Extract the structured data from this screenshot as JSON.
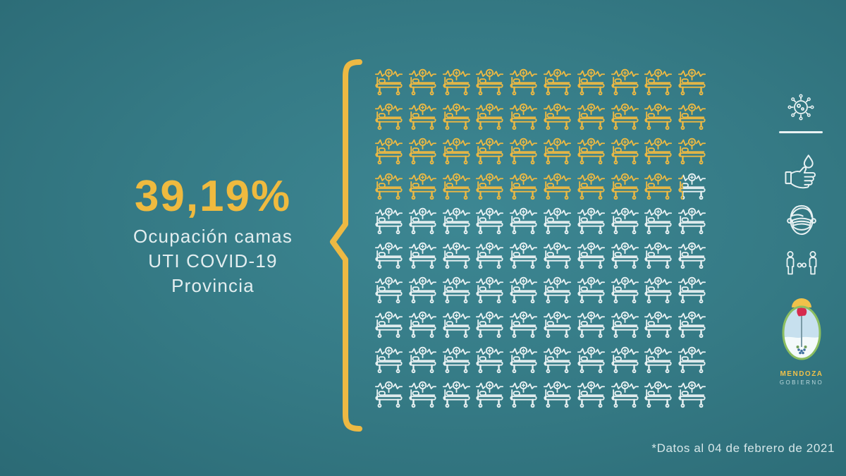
{
  "theme": {
    "background_center": "#3d8793",
    "background_edge": "#2b6a75",
    "accent_yellow": "#efba3f",
    "icon_white": "#e9f2f3",
    "text_light": "#e3eef0"
  },
  "headline": {
    "percentage": "39,19%",
    "subtitle_lines": [
      "Ocupación camas",
      "UTI COVID-19",
      "Provincia"
    ]
  },
  "chart_data": {
    "type": "pictograph",
    "title": "Ocupación camas UTI COVID-19 Provincia",
    "value_percent": 39.19,
    "value_label": "39,19%",
    "grid_rows": 10,
    "grid_cols": 10,
    "total_icons": 100,
    "full_filled_icons": 39,
    "partial_icon_fraction": 0.19,
    "icon": "hospital-bed-icon",
    "filled_color": "#edb943",
    "empty_color": "#e9f2f3",
    "note": "*Datos al 04 de febrero de 2021"
  },
  "rail_icons": [
    {
      "name": "virus-icon"
    },
    {
      "name": "hand-wash-icon"
    },
    {
      "name": "face-mask-icon"
    },
    {
      "name": "social-distance-icon"
    }
  ],
  "logo": {
    "org": "MENDOZA",
    "suborg": "GOBIERNO"
  },
  "footnote": "*Datos al 04 de febrero de 2021"
}
